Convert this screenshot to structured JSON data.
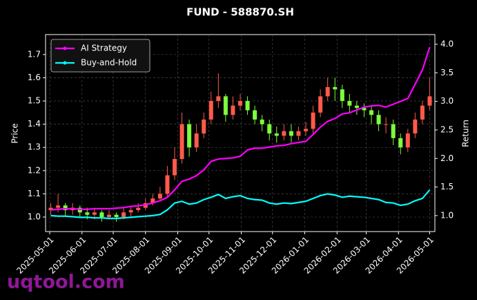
{
  "chart_data": {
    "type": "candlestick",
    "title": "FUND - 588870.SH",
    "ylabel": "Price",
    "y2label": "Return",
    "grid": true,
    "legend": "upper left",
    "up_color": "#ff5a4a",
    "down_color": "#7dff3c",
    "x": [
      "2025-05-02",
      "2025-05-09",
      "2025-05-16",
      "2025-05-23",
      "2025-05-30",
      "2025-06-06",
      "2025-06-13",
      "2025-06-20",
      "2025-06-27",
      "2025-07-04",
      "2025-07-11",
      "2025-07-18",
      "2025-07-25",
      "2025-08-01",
      "2025-08-08",
      "2025-08-15",
      "2025-08-22",
      "2025-08-29",
      "2025-09-05",
      "2025-09-12",
      "2025-09-19",
      "2025-09-26",
      "2025-10-03",
      "2025-10-10",
      "2025-10-17",
      "2025-10-24",
      "2025-10-31",
      "2025-11-07",
      "2025-11-14",
      "2025-11-21",
      "2025-11-28",
      "2025-12-05",
      "2025-12-12",
      "2025-12-19",
      "2025-12-26",
      "2026-01-02",
      "2026-01-09",
      "2026-01-16",
      "2026-01-23",
      "2026-01-30",
      "2026-02-06",
      "2026-02-13",
      "2026-02-20",
      "2026-02-27",
      "2026-03-06",
      "2026-03-13",
      "2026-03-20",
      "2026-03-27",
      "2026-04-03",
      "2026-04-10",
      "2026-04-17",
      "2026-04-24",
      "2026-05-01"
    ],
    "open": [
      1.03,
      1.04,
      1.05,
      1.03,
      1.04,
      1.02,
      1.01,
      1.02,
      1.0,
      1.01,
      1.0,
      1.02,
      1.03,
      1.04,
      1.06,
      1.08,
      1.1,
      1.18,
      1.25,
      1.4,
      1.3,
      1.36,
      1.42,
      1.5,
      1.52,
      1.44,
      1.48,
      1.5,
      1.46,
      1.42,
      1.4,
      1.36,
      1.35,
      1.37,
      1.35,
      1.37,
      1.38,
      1.45,
      1.52,
      1.56,
      1.55,
      1.5,
      1.48,
      1.47,
      1.46,
      1.44,
      1.4,
      1.4,
      1.34,
      1.3,
      1.36,
      1.42,
      1.48
    ],
    "high": [
      1.06,
      1.1,
      1.06,
      1.06,
      1.05,
      1.04,
      1.04,
      1.03,
      1.03,
      1.02,
      1.04,
      1.05,
      1.06,
      1.08,
      1.1,
      1.13,
      1.22,
      1.3,
      1.45,
      1.42,
      1.4,
      1.45,
      1.54,
      1.62,
      1.53,
      1.52,
      1.53,
      1.52,
      1.48,
      1.44,
      1.42,
      1.39,
      1.4,
      1.4,
      1.39,
      1.41,
      1.48,
      1.55,
      1.6,
      1.6,
      1.57,
      1.53,
      1.5,
      1.49,
      1.48,
      1.46,
      1.43,
      1.42,
      1.36,
      1.38,
      1.45,
      1.5,
      1.6
    ],
    "low": [
      1.01,
      1.02,
      1.0,
      1.01,
      1.0,
      0.99,
      0.99,
      0.98,
      0.99,
      0.98,
      0.99,
      1.0,
      1.02,
      1.03,
      1.05,
      1.07,
      1.09,
      1.16,
      1.23,
      1.26,
      1.28,
      1.34,
      1.4,
      1.47,
      1.41,
      1.42,
      1.46,
      1.44,
      1.4,
      1.37,
      1.33,
      1.32,
      1.33,
      1.32,
      1.33,
      1.35,
      1.36,
      1.43,
      1.5,
      1.5,
      1.47,
      1.45,
      1.44,
      1.43,
      1.4,
      1.37,
      1.36,
      1.31,
      1.27,
      1.28,
      1.34,
      1.4,
      1.46
    ],
    "close": [
      1.04,
      1.05,
      1.03,
      1.04,
      1.02,
      1.01,
      1.02,
      1.0,
      1.01,
      1.0,
      1.02,
      1.03,
      1.04,
      1.06,
      1.08,
      1.1,
      1.18,
      1.25,
      1.4,
      1.3,
      1.36,
      1.42,
      1.5,
      1.52,
      1.44,
      1.48,
      1.5,
      1.46,
      1.42,
      1.4,
      1.36,
      1.35,
      1.37,
      1.35,
      1.37,
      1.38,
      1.45,
      1.52,
      1.56,
      1.55,
      1.5,
      1.48,
      1.47,
      1.46,
      1.44,
      1.4,
      1.4,
      1.34,
      1.3,
      1.36,
      1.42,
      1.48,
      1.52
    ],
    "series": [
      {
        "name": "AI Strategy",
        "color": "#ff00ff",
        "axis": "y2",
        "values": [
          1.1,
          1.11,
          1.12,
          1.12,
          1.11,
          1.11,
          1.12,
          1.12,
          1.12,
          1.13,
          1.14,
          1.16,
          1.17,
          1.19,
          1.22,
          1.26,
          1.32,
          1.45,
          1.6,
          1.64,
          1.7,
          1.8,
          1.95,
          1.99,
          2.0,
          2.01,
          2.04,
          2.15,
          2.18,
          2.18,
          2.2,
          2.22,
          2.23,
          2.26,
          2.28,
          2.3,
          2.42,
          2.55,
          2.65,
          2.7,
          2.78,
          2.8,
          2.85,
          2.9,
          2.92,
          2.93,
          2.9,
          2.95,
          3.0,
          3.05,
          3.3,
          3.55,
          3.95
        ]
      },
      {
        "name": "Buy-and-Hold",
        "color": "#00ffff",
        "axis": "y2",
        "values": [
          1.0,
          0.99,
          0.99,
          0.98,
          0.97,
          0.97,
          0.96,
          0.96,
          0.95,
          0.95,
          0.96,
          0.97,
          0.98,
          0.99,
          1.0,
          1.02,
          1.1,
          1.22,
          1.25,
          1.2,
          1.22,
          1.28,
          1.32,
          1.37,
          1.3,
          1.33,
          1.35,
          1.3,
          1.28,
          1.27,
          1.22,
          1.2,
          1.22,
          1.21,
          1.23,
          1.25,
          1.3,
          1.35,
          1.38,
          1.36,
          1.32,
          1.34,
          1.33,
          1.32,
          1.3,
          1.28,
          1.23,
          1.22,
          1.18,
          1.2,
          1.26,
          1.3,
          1.45
        ]
      }
    ],
    "xlim": [
      "2025-04-27",
      "2026-05-06"
    ],
    "xticks": [
      "2025-05-01",
      "2025-06-01",
      "2025-07-01",
      "2025-08-01",
      "2025-09-01",
      "2025-10-01",
      "2025-11-01",
      "2025-12-01",
      "2026-01-01",
      "2026-02-01",
      "2026-03-01",
      "2026-04-01",
      "2026-05-01"
    ],
    "ylim": [
      0.9375,
      1.786
    ],
    "yticks": [
      {
        "value": 1,
        "label": "1.0"
      },
      1.1,
      1.2,
      1.3,
      1.4,
      1.5,
      1.6,
      1.7
    ],
    "y2lim": [
      0.72,
      4.17
    ],
    "y2ticks": [
      {
        "value": 1,
        "label": "1.0"
      },
      1.5,
      {
        "value": 2,
        "label": "2.0"
      },
      2.5,
      {
        "value": 3,
        "label": "3.0"
      },
      3.5,
      {
        "value": 4,
        "label": "4.0"
      }
    ]
  },
  "watermark": "uqtool.com"
}
